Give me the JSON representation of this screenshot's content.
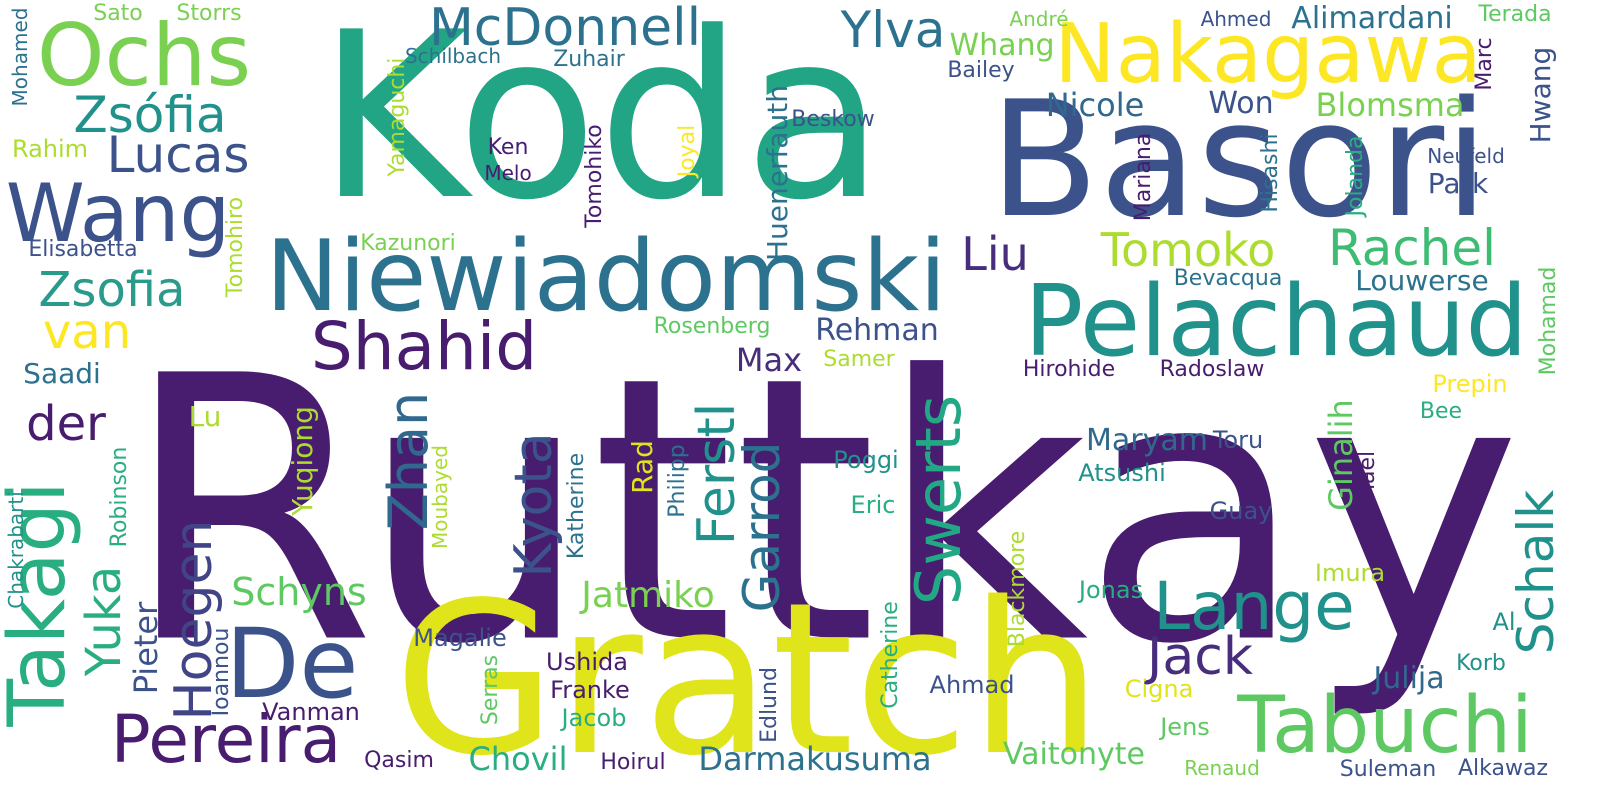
{
  "palette": {
    "dark_purple": "#481c6e",
    "indigo": "#3b528b",
    "blue": "#2c728e",
    "teal": "#21918c",
    "green_teal": "#28ae80",
    "green": "#5ec962",
    "lime": "#addc30",
    "yellow": "#e0e41a"
  },
  "words": [
    {
      "text": "Ruttkay",
      "color": "#481c6e",
      "size": 3,
      "vertical": false
    },
    {
      "text": "Koda",
      "color": "#21a585",
      "size": 3,
      "vertical": false
    },
    {
      "text": "Basori",
      "color": "#3b528b",
      "size": 3,
      "vertical": false
    },
    {
      "text": "Gratch",
      "color": "#e0e41a",
      "size": 3,
      "vertical": false
    },
    {
      "text": "Niewiadomski",
      "color": "#2c728e",
      "size": 2,
      "vertical": false
    },
    {
      "text": "Pelachaud",
      "color": "#21918c",
      "size": 2,
      "vertical": false
    },
    {
      "text": "Nakagawa",
      "color": "#fde725",
      "size": 2,
      "vertical": false
    },
    {
      "text": "Ochs",
      "color": "#7ad151",
      "size": 2,
      "vertical": false
    },
    {
      "text": "Wang",
      "color": "#3b528b",
      "size": 2,
      "vertical": false
    },
    {
      "text": "De",
      "color": "#3b528b",
      "size": 2,
      "vertical": false
    },
    {
      "text": "Takagi",
      "color": "#28ae80",
      "size": 2,
      "vertical": true
    },
    {
      "text": "Tabuchi",
      "color": "#5ec962",
      "size": 2,
      "vertical": false
    },
    {
      "text": "Pereira",
      "color": "#481c6e",
      "size": 2,
      "vertical": false
    },
    {
      "text": "Lange",
      "color": "#21918c",
      "size": 2,
      "vertical": false
    },
    {
      "text": "Swerts",
      "color": "#22a884",
      "size": 2,
      "vertical": true
    },
    {
      "text": "Shahid",
      "color": "#481c6e",
      "size": 2,
      "vertical": false
    },
    {
      "text": "McDonnell",
      "color": "#2c728e",
      "size": 2,
      "vertical": false
    },
    {
      "text": "Zsófia",
      "color": "#21918c",
      "size": 2,
      "vertical": false
    },
    {
      "text": "Lucas",
      "color": "#3b528b",
      "size": 2,
      "vertical": false
    },
    {
      "text": "Zsofia",
      "color": "#2a9a8b",
      "size": 2,
      "vertical": false
    },
    {
      "text": "Jack",
      "color": "#472d7b",
      "size": 2,
      "vertical": false
    },
    {
      "text": "Rachel",
      "color": "#3fbc73",
      "size": 2,
      "vertical": false
    },
    {
      "text": "Tomoko",
      "color": "#addc30",
      "size": 2,
      "vertical": false
    },
    {
      "text": "Kyota",
      "color": "#3b528b",
      "size": 2,
      "vertical": true
    },
    {
      "text": "Zhan",
      "color": "#31688e",
      "size": 2,
      "vertical": true
    },
    {
      "text": "Hoegen",
      "color": "#414487",
      "size": 2,
      "vertical": true
    },
    {
      "text": "Ferstl",
      "color": "#21918c",
      "size": 2,
      "vertical": true
    },
    {
      "text": "Garrod",
      "color": "#2c728e",
      "size": 2,
      "vertical": true
    },
    {
      "text": "Schalk",
      "color": "#21918c",
      "size": 2,
      "vertical": true
    },
    {
      "text": "Ylva",
      "color": "#2c728e",
      "size": 2,
      "vertical": false
    },
    {
      "text": "Liu",
      "color": "#472d7b",
      "size": 2,
      "vertical": false
    },
    {
      "text": "van",
      "color": "#fde725",
      "size": 2,
      "vertical": false
    },
    {
      "text": "der",
      "color": "#481c6e",
      "size": 2,
      "vertical": false
    },
    {
      "text": "Yuka",
      "color": "#28ae80",
      "size": 2,
      "vertical": true
    },
    {
      "text": "Nicole",
      "color": "#31688e",
      "size": 1,
      "vertical": false
    },
    {
      "text": "Blomsma",
      "color": "#7ad151",
      "size": 1,
      "vertical": false
    },
    {
      "text": "Won",
      "color": "#3b528b",
      "size": 1,
      "vertical": false
    },
    {
      "text": "Alimardani",
      "color": "#2c728e",
      "size": 1,
      "vertical": false
    },
    {
      "text": "Whang",
      "color": "#7ad151",
      "size": 1,
      "vertical": false
    },
    {
      "text": "Hwang",
      "color": "#3b528b",
      "size": 1,
      "vertical": true
    },
    {
      "text": "Schyns",
      "color": "#5ec962",
      "size": 1,
      "vertical": false
    },
    {
      "text": "Jatmiko",
      "color": "#7ad151",
      "size": 1,
      "vertical": false
    },
    {
      "text": "Darmakusuma",
      "color": "#2c728e",
      "size": 1,
      "vertical": false
    },
    {
      "text": "Chovil",
      "color": "#28ae80",
      "size": 1,
      "vertical": false
    },
    {
      "text": "Vaitonyte",
      "color": "#5ec962",
      "size": 1,
      "vertical": false
    },
    {
      "text": "Julija",
      "color": "#31688e",
      "size": 1,
      "vertical": false
    },
    {
      "text": "Maryam",
      "color": "#31688e",
      "size": 1,
      "vertical": false
    },
    {
      "text": "Ginalih",
      "color": "#5ec962",
      "size": 1,
      "vertical": true
    },
    {
      "text": "Rehman",
      "color": "#3b528b",
      "size": 1,
      "vertical": false
    },
    {
      "text": "Max",
      "color": "#472d7b",
      "size": 1,
      "vertical": false
    },
    {
      "text": "Park",
      "color": "#3b528b",
      "size": 1,
      "vertical": false
    },
    {
      "text": "Louwerse",
      "color": "#2c728e",
      "size": 1,
      "vertical": false
    },
    {
      "text": "Huenerfauth",
      "color": "#2c728e",
      "size": 1,
      "vertical": true
    },
    {
      "text": "Yuqiong",
      "color": "#addc30",
      "size": 1,
      "vertical": true
    },
    {
      "text": "Pieter",
      "color": "#3b528b",
      "size": 1,
      "vertical": true
    },
    {
      "text": "Saadi",
      "color": "#2c728e",
      "size": 1,
      "vertical": false
    },
    {
      "text": "Lu",
      "color": "#addc30",
      "size": 1,
      "vertical": false
    },
    {
      "text": "Rad",
      "color": "#e0e41a",
      "size": 1,
      "vertical": true
    },
    {
      "text": "Eric",
      "color": "#28ae80",
      "size": 1,
      "vertical": false
    },
    {
      "text": "Poggi",
      "color": "#21918c",
      "size": 1,
      "vertical": false
    },
    {
      "text": "Guay",
      "color": "#3b528b",
      "size": 1,
      "vertical": false
    },
    {
      "text": "Toru",
      "color": "#3b528b",
      "size": 1,
      "vertical": false
    },
    {
      "text": "Atsushi",
      "color": "#21918c",
      "size": 1,
      "vertical": false
    },
    {
      "text": "Magalie",
      "color": "#3b528b",
      "size": 1,
      "vertical": false
    },
    {
      "text": "Ushida",
      "color": "#481c6e",
      "size": 1,
      "vertical": false
    },
    {
      "text": "Franke",
      "color": "#481c6e",
      "size": 1,
      "vertical": false
    },
    {
      "text": "Jacob",
      "color": "#28ae80",
      "size": 1,
      "vertical": false
    },
    {
      "text": "Vanman",
      "color": "#481c6e",
      "size": 1,
      "vertical": false
    },
    {
      "text": "Ahmad",
      "color": "#3b528b",
      "size": 1,
      "vertical": false
    },
    {
      "text": "Cigna",
      "color": "#e0e41a",
      "size": 1,
      "vertical": false
    },
    {
      "text": "Jens",
      "color": "#5ec962",
      "size": 1,
      "vertical": false
    },
    {
      "text": "Jonas",
      "color": "#28ae80",
      "size": 1,
      "vertical": false
    },
    {
      "text": "Imura",
      "color": "#addc30",
      "size": 1,
      "vertical": false
    },
    {
      "text": "Korb",
      "color": "#21918c",
      "size": 1,
      "vertical": false
    },
    {
      "text": "Al",
      "color": "#21918c",
      "size": 1,
      "vertical": false
    },
    {
      "text": "Bee",
      "color": "#28ae80",
      "size": 1,
      "vertical": false
    },
    {
      "text": "Prepin",
      "color": "#fde725",
      "size": 1,
      "vertical": false
    },
    {
      "text": "Mohamad",
      "color": "#5ec962",
      "size": 1,
      "vertical": true
    },
    {
      "text": "Bevacqua",
      "color": "#2c728e",
      "size": 1,
      "vertical": false
    },
    {
      "text": "Hirohide",
      "color": "#481c6e",
      "size": 1,
      "vertical": false
    },
    {
      "text": "Radoslaw",
      "color": "#481c6e",
      "size": 1,
      "vertical": false
    },
    {
      "text": "Samer",
      "color": "#addc30",
      "size": 1,
      "vertical": false
    },
    {
      "text": "Rosenberg",
      "color": "#5ec962",
      "size": 1,
      "vertical": false
    },
    {
      "text": "Kazunori",
      "color": "#7ad151",
      "size": 1,
      "vertical": false
    },
    {
      "text": "Elisabetta",
      "color": "#3b528b",
      "size": 1,
      "vertical": false
    },
    {
      "text": "Rahim",
      "color": "#addc30",
      "size": 1,
      "vertical": false
    },
    {
      "text": "Tomohiro",
      "color": "#addc30",
      "size": 1,
      "vertical": true
    },
    {
      "text": "Tomohiko",
      "color": "#481c6e",
      "size": 1,
      "vertical": true
    },
    {
      "text": "Yamaguchi",
      "color": "#addc30",
      "size": 1,
      "vertical": true
    },
    {
      "text": "Joyal",
      "color": "#fde725",
      "size": 1,
      "vertical": true
    },
    {
      "text": "Ken",
      "color": "#481c6e",
      "size": 1,
      "vertical": false
    },
    {
      "text": "Melo",
      "color": "#481c6e",
      "size": 1,
      "vertical": false
    },
    {
      "text": "Beskow",
      "color": "#3b528b",
      "size": 1,
      "vertical": false
    },
    {
      "text": "Bailey",
      "color": "#3b528b",
      "size": 1,
      "vertical": false
    },
    {
      "text": "Zuhair",
      "color": "#2c728e",
      "size": 1,
      "vertical": false
    },
    {
      "text": "Schilbach",
      "color": "#2c728e",
      "size": 1,
      "vertical": false
    },
    {
      "text": "Sato",
      "color": "#7ad151",
      "size": 1,
      "vertical": false
    },
    {
      "text": "Storrs",
      "color": "#7ad151",
      "size": 1,
      "vertical": false
    },
    {
      "text": "André",
      "color": "#7ad151",
      "size": 1,
      "vertical": false
    },
    {
      "text": "Ahmed",
      "color": "#3b528b",
      "size": 1,
      "vertical": false
    },
    {
      "text": "Terada",
      "color": "#5ec962",
      "size": 1,
      "vertical": false
    },
    {
      "text": "Marc",
      "color": "#481c6e",
      "size": 1,
      "vertical": true
    },
    {
      "text": "Neufeld",
      "color": "#3b528b",
      "size": 1,
      "vertical": false
    },
    {
      "text": "Jolanda",
      "color": "#28ae80",
      "size": 1,
      "vertical": true
    },
    {
      "text": "Hisashi",
      "color": "#2c728e",
      "size": 1,
      "vertical": true
    },
    {
      "text": "Mariana",
      "color": "#481c6e",
      "size": 1,
      "vertical": true
    },
    {
      "text": "Mohamed",
      "color": "#2c728e",
      "size": 1,
      "vertical": true
    },
    {
      "text": "Chakrabarti",
      "color": "#21918c",
      "size": 1,
      "vertical": true
    },
    {
      "text": "Robinson",
      "color": "#28ae80",
      "size": 1,
      "vertical": true
    },
    {
      "text": "Ioannou",
      "color": "#3b528b",
      "size": 1,
      "vertical": true
    },
    {
      "text": "Moubayed",
      "color": "#addc30",
      "size": 1,
      "vertical": true
    },
    {
      "text": "Katherine",
      "color": "#2c728e",
      "size": 1,
      "vertical": true
    },
    {
      "text": "Philipp",
      "color": "#2c728e",
      "size": 1,
      "vertical": true
    },
    {
      "text": "Michael",
      "color": "#481c6e",
      "size": 1,
      "vertical": true
    },
    {
      "text": "Serras",
      "color": "#5ec962",
      "size": 1,
      "vertical": true
    },
    {
      "text": "Edlund",
      "color": "#3b528b",
      "size": 1,
      "vertical": true
    },
    {
      "text": "Catherine",
      "color": "#28ae80",
      "size": 1,
      "vertical": true
    },
    {
      "text": "Blackmore",
      "color": "#addc30",
      "size": 1,
      "vertical": true
    },
    {
      "text": "Qasim",
      "color": "#481c6e",
      "size": 1,
      "vertical": false
    },
    {
      "text": "Hoirul",
      "color": "#481c6e",
      "size": 1,
      "vertical": false
    },
    {
      "text": "Renaud",
      "color": "#7ad151",
      "size": 1,
      "vertical": false
    },
    {
      "text": "Suleman",
      "color": "#3b528b",
      "size": 1,
      "vertical": false
    },
    {
      "text": "Alkawaz",
      "color": "#3b528b",
      "size": 1,
      "vertical": false
    }
  ]
}
